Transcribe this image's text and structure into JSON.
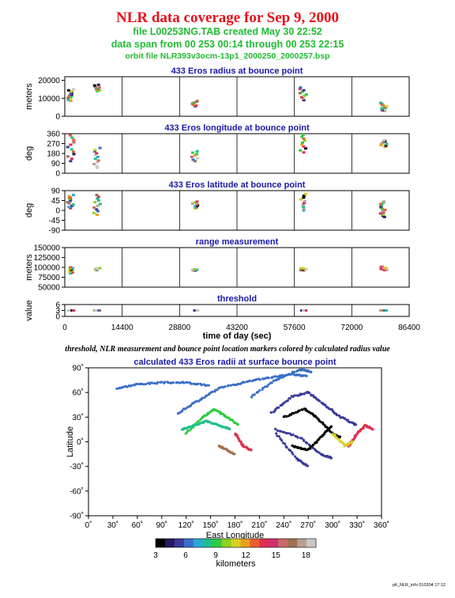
{
  "header": {
    "title": "NLR data coverage for Sep 9, 2000",
    "file_line": "file L00253NG.TAB created May 30 22:52",
    "span_line": "data span from 00 253 00:14 through 00 253 22:15",
    "orbit_line": "orbit file NLR393v3ocm-13p1_2000250_2000257.bsp"
  },
  "caption": "threshold, NLR measurement and bounce point location markers colored by calculated radius value",
  "footer": "plt_NLR_info 010304 17:12",
  "colorbar": {
    "ticks": [
      "3",
      "6",
      "9",
      "12",
      "15",
      "18"
    ],
    "label": "kilometers",
    "range": [
      3,
      19
    ],
    "colors": [
      "#000000",
      "#2a1a60",
      "#3a3a9a",
      "#3a6ec8",
      "#2aaad8",
      "#1fbf8f",
      "#2ecc40",
      "#8fd020",
      "#d8d020",
      "#e8a020",
      "#e86030",
      "#e03050",
      "#d03070",
      "#c86a6a",
      "#a07050",
      "#b8a090",
      "#c8c8c8"
    ]
  },
  "chart_data": [
    {
      "type": "scatter",
      "title": "433 Eros radius at bounce point",
      "ylabel": "meters",
      "ylim": [
        0,
        22000
      ],
      "yticks": [
        "20000",
        "10000",
        "0"
      ],
      "ytick_values": [
        20000,
        10000,
        0
      ],
      "clusters": [
        [
          1500,
          8500,
          15000,
          12
        ],
        [
          8100,
          14000,
          17500,
          10
        ],
        [
          32600,
          5500,
          8500,
          8
        ],
        [
          59800,
          9000,
          16000,
          10
        ],
        [
          80000,
          3000,
          7500,
          12
        ]
      ]
    },
    {
      "type": "scatter",
      "title": "433 Eros longitude at bounce point",
      "ylabel": "deg",
      "ylim": [
        0,
        360
      ],
      "yticks": [
        "360",
        "270",
        "180",
        "90",
        "0"
      ],
      "ytick_values": [
        360,
        270,
        180,
        90,
        0
      ],
      "clusters": [
        [
          1500,
          110,
          345,
          12
        ],
        [
          8100,
          50,
          230,
          12
        ],
        [
          32600,
          110,
          200,
          8
        ],
        [
          59800,
          190,
          350,
          10
        ],
        [
          80000,
          240,
          300,
          12
        ]
      ]
    },
    {
      "type": "scatter",
      "title": "433 Eros latitude at bounce point",
      "ylabel": "deg",
      "ylim": [
        -90,
        90
      ],
      "yticks": [
        "90",
        "45",
        "0",
        "-45",
        "-90"
      ],
      "ytick_values": [
        90,
        45,
        0,
        -45,
        -90
      ],
      "clusters": [
        [
          1500,
          10,
          70,
          12
        ],
        [
          8100,
          -20,
          70,
          12
        ],
        [
          32600,
          10,
          40,
          8
        ],
        [
          59800,
          0,
          75,
          10
        ],
        [
          80000,
          -30,
          40,
          14
        ]
      ]
    },
    {
      "type": "scatter",
      "title": "range measurement",
      "ylabel": "meters",
      "ylim": [
        50000,
        150000
      ],
      "yticks": [
        "150000",
        "125000",
        "100000",
        "75000",
        "50000"
      ],
      "ytick_values": [
        150000,
        125000,
        100000,
        75000,
        50000
      ],
      "clusters": [
        [
          1500,
          85000,
          100000,
          8
        ],
        [
          8100,
          93000,
          98000,
          6
        ],
        [
          32600,
          92000,
          95000,
          6
        ],
        [
          59800,
          92000,
          98000,
          8
        ],
        [
          80000,
          93000,
          102000,
          8
        ]
      ]
    },
    {
      "type": "scatter",
      "title": "threshold",
      "ylabel": "value",
      "ylim": [
        0,
        6
      ],
      "yticks": [
        "6",
        "3",
        "0"
      ],
      "ytick_values": [
        6,
        3,
        0
      ],
      "clusters": [
        [
          1500,
          3,
          3,
          10
        ],
        [
          8100,
          3,
          3,
          6
        ],
        [
          32600,
          3,
          3,
          6
        ],
        [
          59800,
          3,
          3,
          8
        ],
        [
          80000,
          3,
          3,
          12
        ]
      ]
    },
    {
      "type": "scatter",
      "title": "calculated 433 Eros radii at surface bounce point",
      "xlabel": "East Longitude",
      "ylabel": "Latitude",
      "xlim": [
        0,
        360
      ],
      "ylim": [
        -90,
        90
      ],
      "xticks": [
        "0˚",
        "30˚",
        "60˚",
        "90˚",
        "120˚",
        "150˚",
        "180˚",
        "210˚",
        "240˚",
        "270˚",
        "300˚",
        "330˚",
        "360˚"
      ],
      "yticks": [
        "90˚",
        "60˚",
        "30˚",
        "0˚",
        "-30˚",
        "-60˚",
        "-90˚"
      ],
      "tracks": [
        {
          "pts": [
            [
              35,
              65
            ],
            [
              60,
              70
            ],
            [
              90,
              72
            ],
            [
              120,
              72
            ],
            [
              150,
              68
            ]
          ],
          "r": 6
        },
        {
          "pts": [
            [
              110,
              35
            ],
            [
              135,
              50
            ],
            [
              160,
              65
            ],
            [
              190,
              72
            ],
            [
              220,
              78
            ],
            [
              250,
              82
            ],
            [
              270,
              80
            ]
          ],
          "r": 6
        },
        {
          "pts": [
            [
              200,
              55
            ],
            [
              230,
              75
            ],
            [
              260,
              88
            ],
            [
              275,
              85
            ]
          ],
          "r": 6
        },
        {
          "pts": [
            [
              225,
              35
            ],
            [
              250,
              55
            ],
            [
              270,
              60
            ],
            [
              290,
              45
            ],
            [
              310,
              30
            ],
            [
              330,
              20
            ]
          ],
          "r": 5
        },
        {
          "pts": [
            [
              230,
              15
            ],
            [
              260,
              5
            ],
            [
              285,
              -15
            ],
            [
              300,
              -20
            ]
          ],
          "r": 5
        },
        {
          "pts": [
            [
              240,
              30
            ],
            [
              265,
              40
            ],
            [
              280,
              30
            ],
            [
              300,
              10
            ],
            [
              310,
              5
            ]
          ],
          "r": 3
        },
        {
          "pts": [
            [
              250,
              -5
            ],
            [
              270,
              -10
            ],
            [
              285,
              5
            ],
            [
              300,
              20
            ]
          ],
          "r": 3
        },
        {
          "pts": [
            [
              230,
              10
            ],
            [
              255,
              -20
            ],
            [
              270,
              -30
            ]
          ],
          "r": 5
        },
        {
          "pts": [
            [
              120,
              10
            ],
            [
              140,
              30
            ],
            [
              155,
              40
            ],
            [
              170,
              30
            ],
            [
              185,
              20
            ]
          ],
          "r": 9
        },
        {
          "pts": [
            [
              115,
              15
            ],
            [
              130,
              20
            ],
            [
              145,
              25
            ],
            [
              160,
              20
            ],
            [
              175,
              15
            ]
          ],
          "r": 8
        },
        {
          "pts": [
            [
              180,
              10
            ],
            [
              190,
              -5
            ],
            [
              200,
              -10
            ]
          ],
          "r": 14
        },
        {
          "pts": [
            [
              160,
              -5
            ],
            [
              170,
              -10
            ],
            [
              180,
              -15
            ]
          ],
          "r": 17
        },
        {
          "pts": [
            [
              320,
              -5
            ],
            [
              330,
              10
            ],
            [
              340,
              20
            ],
            [
              350,
              15
            ]
          ],
          "r": 14
        },
        {
          "pts": [
            [
              300,
              10
            ],
            [
              315,
              -5
            ],
            [
              325,
              0
            ]
          ],
          "r": 11
        }
      ]
    }
  ],
  "shared_x": {
    "label": "time of day (sec)",
    "xlim": [
      0,
      86400
    ],
    "ticks": [
      "0",
      "14400",
      "28800",
      "43200",
      "57600",
      "72000",
      "86400"
    ]
  }
}
